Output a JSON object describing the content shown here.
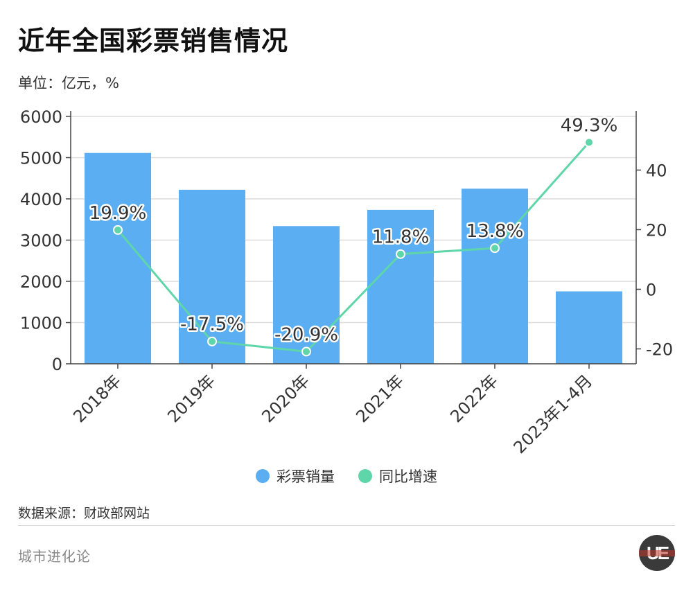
{
  "title": "近年全国彩票销售情况",
  "unit_label": "单位：亿元，%",
  "source": "数据来源：财政部网站",
  "brand": "城市进化论",
  "logo_text": "UE",
  "colors": {
    "bar": "#5aaef1",
    "line": "#5fd6a9",
    "grid": "#dcdcdc",
    "axis": "#444444"
  },
  "chart_data": {
    "type": "bar",
    "categories": [
      "2018年",
      "2019年",
      "2020年",
      "2021年",
      "2022年",
      "2023年1-4月"
    ],
    "series": [
      {
        "name": "彩票销量",
        "type": "bar",
        "axis": "left",
        "values": [
          5114,
          4221,
          3340,
          3733,
          4247,
          1757
        ]
      },
      {
        "name": "同比增速",
        "type": "line",
        "axis": "right",
        "values": [
          19.9,
          -17.5,
          -20.9,
          11.8,
          13.8,
          49.3
        ],
        "labels": [
          "19.9%",
          "-17.5%",
          "-20.9%",
          "11.8%",
          "13.8%",
          "49.3%"
        ]
      }
    ],
    "y_left": {
      "range": [
        0,
        6000
      ],
      "ticks": [
        0,
        1000,
        2000,
        3000,
        4000,
        5000,
        6000
      ]
    },
    "y_right": {
      "range": [
        -25,
        58
      ],
      "ticks": [
        -20,
        0,
        20,
        40
      ]
    },
    "grid": true,
    "legend_position": "bottom-center"
  }
}
